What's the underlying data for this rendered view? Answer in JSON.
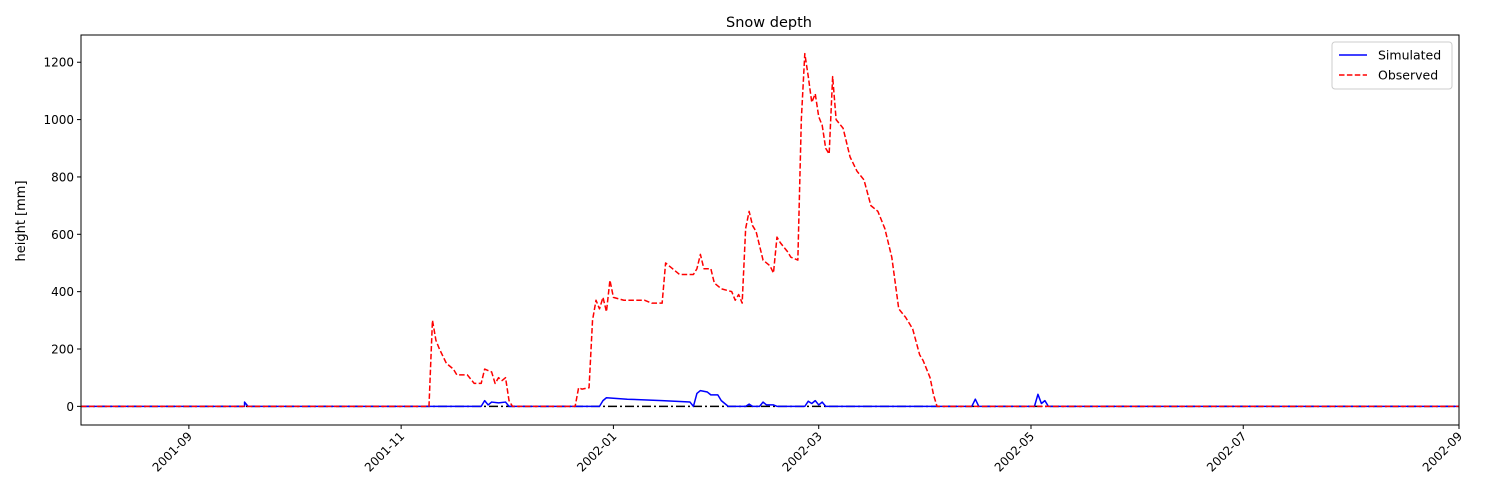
{
  "chart_data": {
    "type": "line",
    "title": "Snow depth",
    "xlabel": "",
    "ylabel": "height [mm]",
    "xlim": [
      "2001-08-01",
      "2002-09-01"
    ],
    "ylim": [
      -65,
      1295
    ],
    "x_ticks": [
      "2001-09",
      "2001-11",
      "2002-01",
      "2002-03",
      "2002-05",
      "2002-07",
      "2002-09"
    ],
    "y_ticks": [
      0,
      200,
      400,
      600,
      800,
      1000,
      1200
    ],
    "grid": false,
    "legend": {
      "placement": "top-right",
      "entries": [
        "Simulated",
        "Observed"
      ]
    },
    "zero_line": {
      "value": 0,
      "color": "#000000",
      "style": "dash-dot"
    },
    "series": [
      {
        "name": "Simulated",
        "color": "#0000ff",
        "style": "solid",
        "points": [
          [
            "2001-08-01",
            0
          ],
          [
            "2001-09-17",
            0
          ],
          [
            "2001-09-17",
            15
          ],
          [
            "2001-09-18",
            0
          ],
          [
            "2001-11-24",
            0
          ],
          [
            "2001-11-25",
            20
          ],
          [
            "2001-11-26",
            5
          ],
          [
            "2001-11-27",
            15
          ],
          [
            "2001-11-29",
            12
          ],
          [
            "2001-12-01",
            15
          ],
          [
            "2001-12-02",
            0
          ],
          [
            "2001-12-28",
            0
          ],
          [
            "2001-12-29",
            20
          ],
          [
            "2001-12-30",
            30
          ],
          [
            "2002-01-05",
            25
          ],
          [
            "2002-01-15",
            20
          ],
          [
            "2002-01-23",
            15
          ],
          [
            "2002-01-24",
            0
          ],
          [
            "2002-01-25",
            45
          ],
          [
            "2002-01-26",
            55
          ],
          [
            "2002-01-28",
            50
          ],
          [
            "2002-01-29",
            40
          ],
          [
            "2002-01-31",
            40
          ],
          [
            "2002-02-01",
            20
          ],
          [
            "2002-02-03",
            0
          ],
          [
            "2002-02-08",
            0
          ],
          [
            "2002-02-09",
            8
          ],
          [
            "2002-02-10",
            0
          ],
          [
            "2002-02-12",
            0
          ],
          [
            "2002-02-13",
            15
          ],
          [
            "2002-02-14",
            5
          ],
          [
            "2002-02-16",
            5
          ],
          [
            "2002-02-17",
            0
          ],
          [
            "2002-02-25",
            0
          ],
          [
            "2002-02-26",
            18
          ],
          [
            "2002-02-27",
            10
          ],
          [
            "2002-02-28",
            20
          ],
          [
            "2002-03-01",
            5
          ],
          [
            "2002-03-02",
            15
          ],
          [
            "2002-03-03",
            0
          ],
          [
            "2002-04-14",
            0
          ],
          [
            "2002-04-15",
            25
          ],
          [
            "2002-04-16",
            0
          ],
          [
            "2002-05-02",
            0
          ],
          [
            "2002-05-03",
            42
          ],
          [
            "2002-05-04",
            10
          ],
          [
            "2002-05-05",
            20
          ],
          [
            "2002-05-06",
            0
          ],
          [
            "2002-09-01",
            0
          ]
        ]
      },
      {
        "name": "Observed",
        "color": "#ff0000",
        "style": "dashed",
        "points": [
          [
            "2001-08-01",
            0
          ],
          [
            "2001-11-09",
            0
          ],
          [
            "2001-11-10",
            300
          ],
          [
            "2001-11-11",
            230
          ],
          [
            "2001-11-12",
            200
          ],
          [
            "2001-11-14",
            150
          ],
          [
            "2001-11-16",
            130
          ],
          [
            "2001-11-17",
            110
          ],
          [
            "2001-11-20",
            110
          ],
          [
            "2001-11-22",
            80
          ],
          [
            "2001-11-24",
            80
          ],
          [
            "2001-11-25",
            130
          ],
          [
            "2001-11-27",
            120
          ],
          [
            "2001-11-28",
            80
          ],
          [
            "2001-11-29",
            100
          ],
          [
            "2001-11-30",
            90
          ],
          [
            "2001-12-01",
            100
          ],
          [
            "2001-12-02",
            20
          ],
          [
            "2001-12-03",
            0
          ],
          [
            "2001-12-21",
            0
          ],
          [
            "2001-12-22",
            65
          ],
          [
            "2001-12-23",
            60
          ],
          [
            "2001-12-25",
            65
          ],
          [
            "2001-12-26",
            300
          ],
          [
            "2001-12-27",
            370
          ],
          [
            "2001-12-28",
            340
          ],
          [
            "2001-12-29",
            380
          ],
          [
            "2001-12-30",
            330
          ],
          [
            "2001-12-31",
            440
          ],
          [
            "2002-01-01",
            380
          ],
          [
            "2002-01-04",
            370
          ],
          [
            "2002-01-10",
            370
          ],
          [
            "2002-01-12",
            360
          ],
          [
            "2002-01-15",
            360
          ],
          [
            "2002-01-16",
            500
          ],
          [
            "2002-01-18",
            480
          ],
          [
            "2002-01-20",
            460
          ],
          [
            "2002-01-24",
            460
          ],
          [
            "2002-01-25",
            480
          ],
          [
            "2002-01-26",
            530
          ],
          [
            "2002-01-27",
            480
          ],
          [
            "2002-01-29",
            480
          ],
          [
            "2002-01-30",
            430
          ],
          [
            "2002-02-01",
            410
          ],
          [
            "2002-02-04",
            400
          ],
          [
            "2002-02-05",
            370
          ],
          [
            "2002-02-06",
            390
          ],
          [
            "2002-02-07",
            360
          ],
          [
            "2002-02-08",
            620
          ],
          [
            "2002-02-09",
            680
          ],
          [
            "2002-02-10",
            630
          ],
          [
            "2002-02-11",
            610
          ],
          [
            "2002-02-13",
            510
          ],
          [
            "2002-02-15",
            490
          ],
          [
            "2002-02-16",
            465
          ],
          [
            "2002-02-17",
            590
          ],
          [
            "2002-02-18",
            570
          ],
          [
            "2002-02-20",
            540
          ],
          [
            "2002-02-21",
            520
          ],
          [
            "2002-02-23",
            510
          ],
          [
            "2002-02-24",
            1000
          ],
          [
            "2002-02-25",
            1230
          ],
          [
            "2002-02-26",
            1150
          ],
          [
            "2002-02-27",
            1060
          ],
          [
            "2002-02-28",
            1090
          ],
          [
            "2002-03-01",
            1010
          ],
          [
            "2002-03-02",
            980
          ],
          [
            "2002-03-03",
            900
          ],
          [
            "2002-03-04",
            880
          ],
          [
            "2002-03-05",
            1150
          ],
          [
            "2002-03-06",
            1000
          ],
          [
            "2002-03-08",
            970
          ],
          [
            "2002-03-10",
            870
          ],
          [
            "2002-03-12",
            820
          ],
          [
            "2002-03-14",
            790
          ],
          [
            "2002-03-16",
            700
          ],
          [
            "2002-03-18",
            680
          ],
          [
            "2002-03-20",
            620
          ],
          [
            "2002-03-22",
            520
          ],
          [
            "2002-03-24",
            340
          ],
          [
            "2002-03-26",
            310
          ],
          [
            "2002-03-28",
            270
          ],
          [
            "2002-03-30",
            180
          ],
          [
            "2002-03-31",
            160
          ],
          [
            "2002-04-02",
            100
          ],
          [
            "2002-04-03",
            40
          ],
          [
            "2002-04-04",
            0
          ],
          [
            "2002-09-01",
            0
          ]
        ]
      }
    ]
  }
}
